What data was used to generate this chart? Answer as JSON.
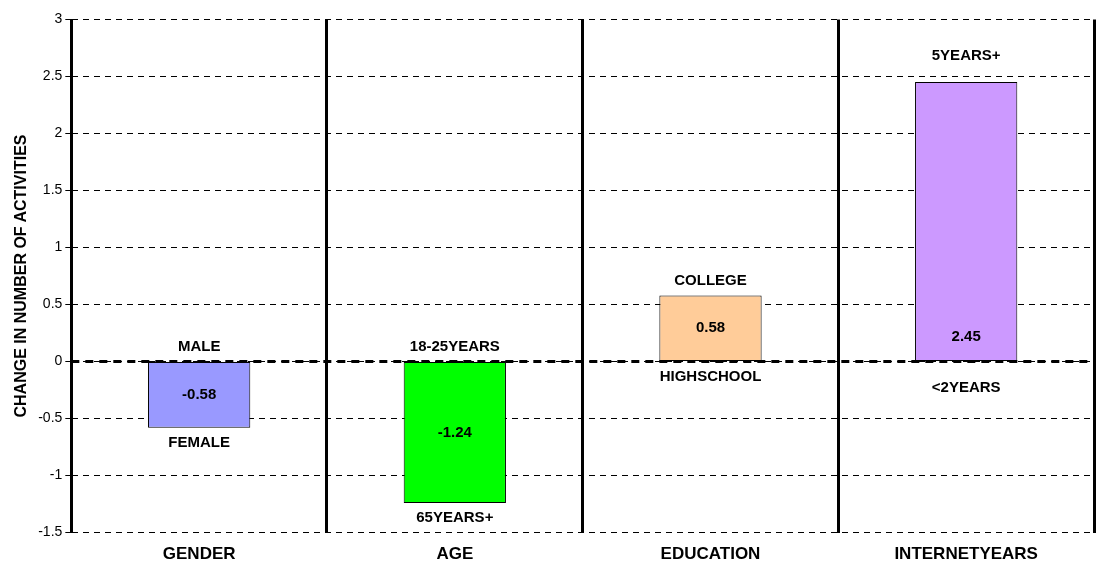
{
  "chart_data": {
    "type": "bar",
    "ylabel": "CHANGE IN NUMBER OF ACTIVITIES",
    "categories": [
      "GENDER",
      "AGE",
      "EDUCATION",
      "INTERNETYEARS"
    ],
    "values": [
      -0.58,
      -1.24,
      0.58,
      2.45
    ],
    "colors": [
      "#9999ff",
      "#00ff00",
      "#ffcc99",
      "#cc99ff"
    ],
    "ylim": [
      -1.5,
      3
    ],
    "yticks": [
      -1.5,
      -1,
      -0.5,
      0,
      0.5,
      1,
      1.5,
      2,
      2.5,
      3
    ],
    "grid": true,
    "legend": false,
    "data_labels": true,
    "ref_lines": [
      {
        "axis": "y",
        "value": 0,
        "color": "#000000",
        "line_style": "dashed"
      }
    ],
    "annotations": [
      {
        "text": "MALE",
        "x": "GENDER",
        "y": 0
      },
      {
        "text": "FEMALE",
        "x": "GENDER",
        "y": -0.58
      },
      {
        "text": "18-25YEARS",
        "x": "AGE",
        "y": 0
      },
      {
        "text": "65YEARS+",
        "x": "AGE",
        "y": -1.24
      },
      {
        "text": "COLLEGE",
        "x": "EDUCATION",
        "y": 0.58
      },
      {
        "text": "HIGHSCHOOL",
        "x": "EDUCATION",
        "y": 0
      },
      {
        "text": "5YEARS+",
        "x": "INTERNETYEARS",
        "y": 2.45
      },
      {
        "text": "<2YEARS",
        "x": "INTERNETYEARS",
        "y": 0
      }
    ]
  }
}
